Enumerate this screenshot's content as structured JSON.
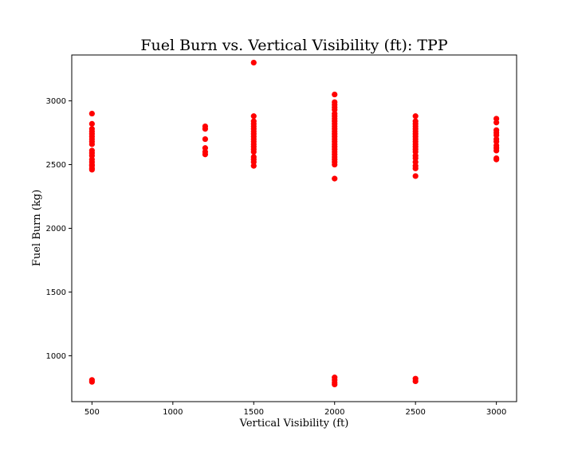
{
  "chart_data": {
    "type": "scatter",
    "title": "Fuel Burn vs. Vertical Visibility (ft): TPP",
    "xlabel": "Vertical Visibility (ft)",
    "ylabel": "Fuel Burn (kg)",
    "xlim": [
      375,
      3125
    ],
    "ylim": [
      640,
      3360
    ],
    "x_ticks": [
      500,
      1000,
      1500,
      2000,
      2500,
      3000
    ],
    "y_ticks": [
      1000,
      1500,
      2000,
      2500,
      3000
    ],
    "grid": false,
    "marker_color": "#ff0000",
    "series": [
      {
        "points": [
          [
            500,
            2900
          ],
          [
            500,
            2820
          ],
          [
            500,
            2780
          ],
          [
            500,
            2760
          ],
          [
            500,
            2740
          ],
          [
            500,
            2720
          ],
          [
            500,
            2700
          ],
          [
            500,
            2680
          ],
          [
            500,
            2660
          ],
          [
            500,
            2610
          ],
          [
            500,
            2590
          ],
          [
            500,
            2570
          ],
          [
            500,
            2540
          ],
          [
            500,
            2520
          ],
          [
            500,
            2500
          ],
          [
            500,
            2490
          ],
          [
            500,
            2470
          ],
          [
            500,
            2460
          ],
          [
            500,
            810
          ],
          [
            500,
            795
          ],
          [
            1200,
            2800
          ],
          [
            1200,
            2780
          ],
          [
            1200,
            2700
          ],
          [
            1200,
            2630
          ],
          [
            1200,
            2600
          ],
          [
            1200,
            2580
          ],
          [
            1500,
            3300
          ],
          [
            1500,
            2880
          ],
          [
            1500,
            2840
          ],
          [
            1500,
            2820
          ],
          [
            1500,
            2800
          ],
          [
            1500,
            2780
          ],
          [
            1500,
            2760
          ],
          [
            1500,
            2740
          ],
          [
            1500,
            2720
          ],
          [
            1500,
            2700
          ],
          [
            1500,
            2680
          ],
          [
            1500,
            2660
          ],
          [
            1500,
            2640
          ],
          [
            1500,
            2620
          ],
          [
            1500,
            2600
          ],
          [
            1500,
            2560
          ],
          [
            1500,
            2540
          ],
          [
            1500,
            2520
          ],
          [
            1500,
            2490
          ],
          [
            2000,
            3050
          ],
          [
            2000,
            2990
          ],
          [
            2000,
            2970
          ],
          [
            2000,
            2950
          ],
          [
            2000,
            2930
          ],
          [
            2000,
            2900
          ],
          [
            2000,
            2880
          ],
          [
            2000,
            2860
          ],
          [
            2000,
            2840
          ],
          [
            2000,
            2820
          ],
          [
            2000,
            2800
          ],
          [
            2000,
            2780
          ],
          [
            2000,
            2760
          ],
          [
            2000,
            2740
          ],
          [
            2000,
            2720
          ],
          [
            2000,
            2700
          ],
          [
            2000,
            2680
          ],
          [
            2000,
            2660
          ],
          [
            2000,
            2640
          ],
          [
            2000,
            2620
          ],
          [
            2000,
            2600
          ],
          [
            2000,
            2580
          ],
          [
            2000,
            2560
          ],
          [
            2000,
            2540
          ],
          [
            2000,
            2520
          ],
          [
            2000,
            2500
          ],
          [
            2000,
            2390
          ],
          [
            2000,
            830
          ],
          [
            2000,
            810
          ],
          [
            2000,
            790
          ],
          [
            2000,
            775
          ],
          [
            2500,
            2880
          ],
          [
            2500,
            2840
          ],
          [
            2500,
            2820
          ],
          [
            2500,
            2800
          ],
          [
            2500,
            2780
          ],
          [
            2500,
            2760
          ],
          [
            2500,
            2740
          ],
          [
            2500,
            2720
          ],
          [
            2500,
            2700
          ],
          [
            2500,
            2680
          ],
          [
            2500,
            2660
          ],
          [
            2500,
            2640
          ],
          [
            2500,
            2620
          ],
          [
            2500,
            2600
          ],
          [
            2500,
            2570
          ],
          [
            2500,
            2550
          ],
          [
            2500,
            2520
          ],
          [
            2500,
            2490
          ],
          [
            2500,
            2470
          ],
          [
            2500,
            2410
          ],
          [
            2500,
            820
          ],
          [
            2500,
            800
          ],
          [
            3000,
            2860
          ],
          [
            3000,
            2830
          ],
          [
            3000,
            2770
          ],
          [
            3000,
            2750
          ],
          [
            3000,
            2730
          ],
          [
            3000,
            2700
          ],
          [
            3000,
            2680
          ],
          [
            3000,
            2650
          ],
          [
            3000,
            2630
          ],
          [
            3000,
            2610
          ],
          [
            3000,
            2550
          ],
          [
            3000,
            2540
          ]
        ]
      }
    ]
  }
}
